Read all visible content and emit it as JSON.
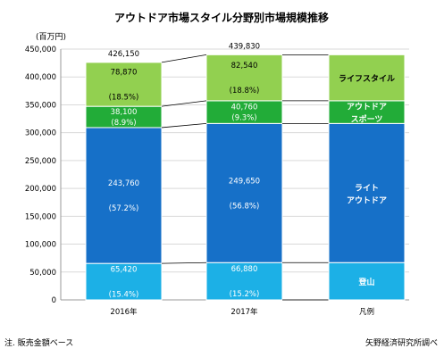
{
  "chart_data": {
    "type": "bar",
    "stacked": true,
    "title": "アウトドア市場スタイル分野別市場規模推移",
    "unit_label": "(百万円)",
    "categories": [
      "2016年",
      "2017年"
    ],
    "ylim": [
      0,
      450000
    ],
    "y_ticks": [
      "0",
      "50,000",
      "100,000",
      "150,000",
      "200,000",
      "250,000",
      "300,000",
      "350,000",
      "400,000",
      "450,000"
    ],
    "totals": [
      "426,150",
      "439,830"
    ],
    "series": [
      {
        "name": "登山",
        "color": "#1cb0e6",
        "values": [
          65420,
          66880
        ],
        "value_labels": [
          "65,420",
          "66,880"
        ],
        "pct_labels": [
          "(15.4%)",
          "(15.2%)"
        ]
      },
      {
        "name": "ライトアウトドア",
        "color": "#1670c8",
        "values": [
          243760,
          249650
        ],
        "value_labels": [
          "243,760",
          "249,650"
        ],
        "pct_labels": [
          "(57.2%)",
          "(56.8%)"
        ]
      },
      {
        "name": "アウトドアスポーツ",
        "color": "#22ac38",
        "values": [
          38100,
          40760
        ],
        "value_labels": [
          "38,100",
          "40,760"
        ],
        "pct_labels": [
          "(8.9%)",
          "(9.3%)"
        ]
      },
      {
        "name": "ライフスタイル",
        "color": "#92d050",
        "values": [
          78870,
          82540
        ],
        "value_labels": [
          "78,870",
          "82,540"
        ],
        "pct_labels": [
          "(18.5%)",
          "(18.8%)"
        ]
      }
    ],
    "legend": {
      "title": "凡例",
      "items": [
        {
          "lines": [
            "ライフスタイル"
          ],
          "color": "#92d050",
          "text_color": "#000000"
        },
        {
          "lines": [
            "アウトドア",
            "スポーツ"
          ],
          "color": "#22ac38",
          "text_color": "#ffffff"
        },
        {
          "lines": [
            "ライト",
            "アウトドア"
          ],
          "color": "#1670c8",
          "text_color": "#ffffff"
        },
        {
          "lines": [
            "登山"
          ],
          "color": "#1cb0e6",
          "text_color": "#ffffff"
        }
      ]
    },
    "gridlines": true
  },
  "footer": {
    "note": "注. 販売金額ベース",
    "source": "矢野経済研究所調べ"
  }
}
